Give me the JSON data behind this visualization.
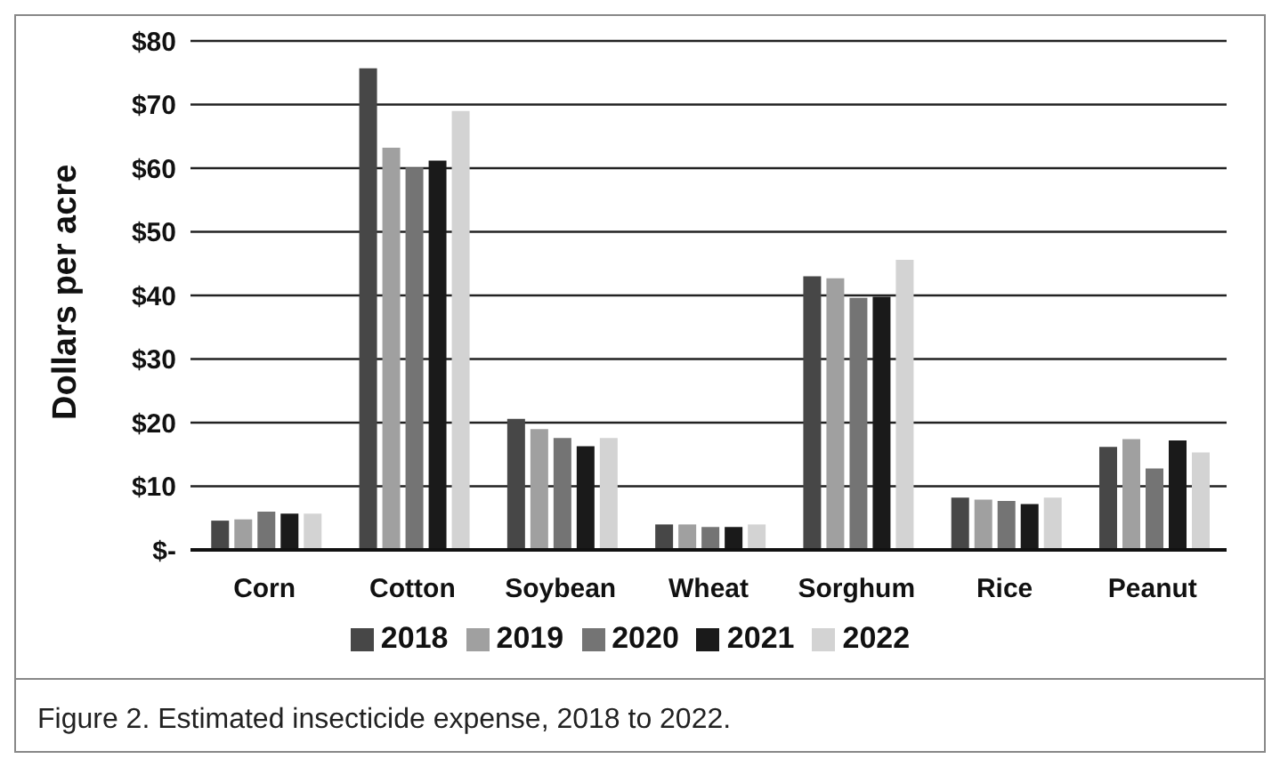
{
  "chart_data": {
    "type": "bar",
    "ylabel": "Dollars per acre",
    "categories": [
      "Corn",
      "Cotton",
      "Soybean",
      "Wheat",
      "Sorghum",
      "Rice",
      "Peanut"
    ],
    "series": [
      {
        "name": "2018",
        "color": "#474747",
        "values": [
          4.6,
          75.7,
          20.6,
          4.0,
          43.0,
          8.2,
          16.2
        ]
      },
      {
        "name": "2019",
        "color": "#a0a0a0",
        "values": [
          4.8,
          63.2,
          19.0,
          4.0,
          42.7,
          7.9,
          17.4
        ]
      },
      {
        "name": "2020",
        "color": "#747474",
        "values": [
          6.0,
          60.1,
          17.6,
          3.6,
          39.6,
          7.7,
          12.8
        ]
      },
      {
        "name": "2021",
        "color": "#1a1a1a",
        "values": [
          5.7,
          61.2,
          16.3,
          3.6,
          39.8,
          7.2,
          17.2
        ]
      },
      {
        "name": "2022",
        "color": "#d3d3d3",
        "values": [
          5.7,
          69.0,
          17.6,
          4.0,
          45.6,
          8.2,
          15.3
        ]
      }
    ],
    "ylim": [
      0,
      80
    ],
    "yticks": [
      {
        "value": 0,
        "label": "$-"
      },
      {
        "value": 10,
        "label": "$10"
      },
      {
        "value": 20,
        "label": "$20"
      },
      {
        "value": 30,
        "label": "$30"
      },
      {
        "value": 40,
        "label": "$40"
      },
      {
        "value": 50,
        "label": "$50"
      },
      {
        "value": 60,
        "label": "$60"
      },
      {
        "value": 70,
        "label": "$70"
      },
      {
        "value": 80,
        "label": "$80"
      }
    ],
    "grid": "y",
    "legend": "bottom",
    "annotations": [
      "Figure 2. Estimated insecticide expense, 2018 to 2022."
    ]
  }
}
